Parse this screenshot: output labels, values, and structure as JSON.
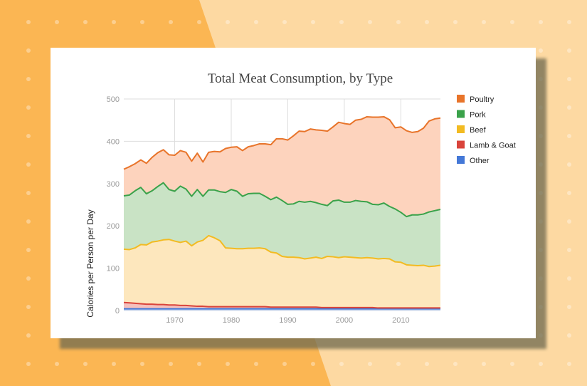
{
  "chart_data": {
    "type": "area",
    "stacked": true,
    "title": "Total Meat Consumption, by Type",
    "xlabel": "",
    "ylabel": "Calories per Person per Day",
    "xlim": [
      1961,
      2017
    ],
    "ylim": [
      0,
      500
    ],
    "x_ticks": [
      1970,
      1980,
      1990,
      2000,
      2010
    ],
    "y_ticks": [
      0,
      100,
      200,
      300,
      400,
      500
    ],
    "grid": true,
    "legend_position": "right",
    "x": [
      1961,
      1962,
      1963,
      1964,
      1965,
      1966,
      1967,
      1968,
      1969,
      1970,
      1971,
      1972,
      1973,
      1974,
      1975,
      1976,
      1977,
      1978,
      1979,
      1980,
      1981,
      1982,
      1983,
      1984,
      1985,
      1986,
      1987,
      1988,
      1989,
      1990,
      1991,
      1992,
      1993,
      1994,
      1995,
      1996,
      1997,
      1998,
      1999,
      2000,
      2001,
      2002,
      2003,
      2004,
      2005,
      2006,
      2007,
      2008,
      2009,
      2010,
      2011,
      2012,
      2013,
      2014,
      2015,
      2016,
      2017
    ],
    "cumulative_totals": {
      "Other": [
        4,
        4,
        4,
        4,
        4,
        4,
        4,
        4,
        4,
        4,
        4,
        4,
        4,
        4,
        4,
        4,
        4,
        4,
        4,
        4,
        4,
        4,
        4,
        4,
        4,
        4,
        4,
        4,
        4,
        4,
        4,
        4,
        4,
        4,
        4,
        4,
        4,
        4,
        4,
        4,
        4,
        4,
        4,
        4,
        4,
        4,
        4,
        4,
        4,
        4,
        4,
        4,
        4,
        4,
        4,
        4,
        4
      ],
      "Lamb & Goat": [
        19,
        18,
        17,
        16,
        15,
        15,
        14,
        14,
        13,
        13,
        12,
        12,
        11,
        10,
        10,
        9,
        9,
        9,
        9,
        9,
        9,
        9,
        9,
        9,
        9,
        9,
        8,
        8,
        8,
        8,
        8,
        8,
        8,
        8,
        8,
        7,
        7,
        7,
        7,
        7,
        7,
        7,
        7,
        7,
        7,
        6,
        6,
        6,
        6,
        6,
        6,
        6,
        6,
        6,
        6,
        6,
        6
      ],
      "Beef": [
        145,
        144,
        148,
        156,
        155,
        162,
        164,
        167,
        168,
        164,
        161,
        164,
        153,
        162,
        166,
        177,
        172,
        165,
        148,
        147,
        146,
        146,
        147,
        147,
        148,
        146,
        138,
        136,
        128,
        126,
        126,
        125,
        122,
        124,
        126,
        123,
        128,
        127,
        125,
        127,
        126,
        125,
        124,
        125,
        124,
        122,
        123,
        122,
        115,
        114,
        108,
        107,
        106,
        107,
        104,
        105,
        107
      ],
      "Pork": [
        271,
        273,
        283,
        291,
        276,
        283,
        293,
        302,
        286,
        282,
        294,
        287,
        270,
        286,
        270,
        285,
        285,
        281,
        279,
        286,
        282,
        270,
        276,
        277,
        277,
        270,
        262,
        268,
        260,
        251,
        252,
        258,
        256,
        258,
        255,
        251,
        248,
        259,
        261,
        256,
        256,
        260,
        258,
        257,
        251,
        250,
        254,
        246,
        240,
        232,
        222,
        226,
        226,
        228,
        233,
        236,
        239
      ],
      "Poultry": [
        334,
        340,
        347,
        356,
        348,
        362,
        373,
        380,
        368,
        367,
        378,
        374,
        353,
        372,
        351,
        374,
        376,
        375,
        383,
        386,
        387,
        378,
        387,
        390,
        394,
        394,
        392,
        406,
        406,
        403,
        413,
        424,
        423,
        429,
        427,
        426,
        424,
        434,
        445,
        442,
        440,
        450,
        452,
        458,
        457,
        457,
        458,
        451,
        432,
        434,
        425,
        421,
        423,
        431,
        448,
        453,
        455
      ]
    },
    "series": [
      {
        "name": "Poultry",
        "color": "#e8742a",
        "fill": "#fdd3bd"
      },
      {
        "name": "Pork",
        "color": "#3aa24a",
        "fill": "#c9e3c5"
      },
      {
        "name": "Beef",
        "color": "#f2bb22",
        "fill": "#fde7bd"
      },
      {
        "name": "Lamb & Goat",
        "color": "#d9443b",
        "fill": "#f4c0bd"
      },
      {
        "name": "Other",
        "color": "#4478d7",
        "fill": "#bcd0f2"
      }
    ]
  }
}
